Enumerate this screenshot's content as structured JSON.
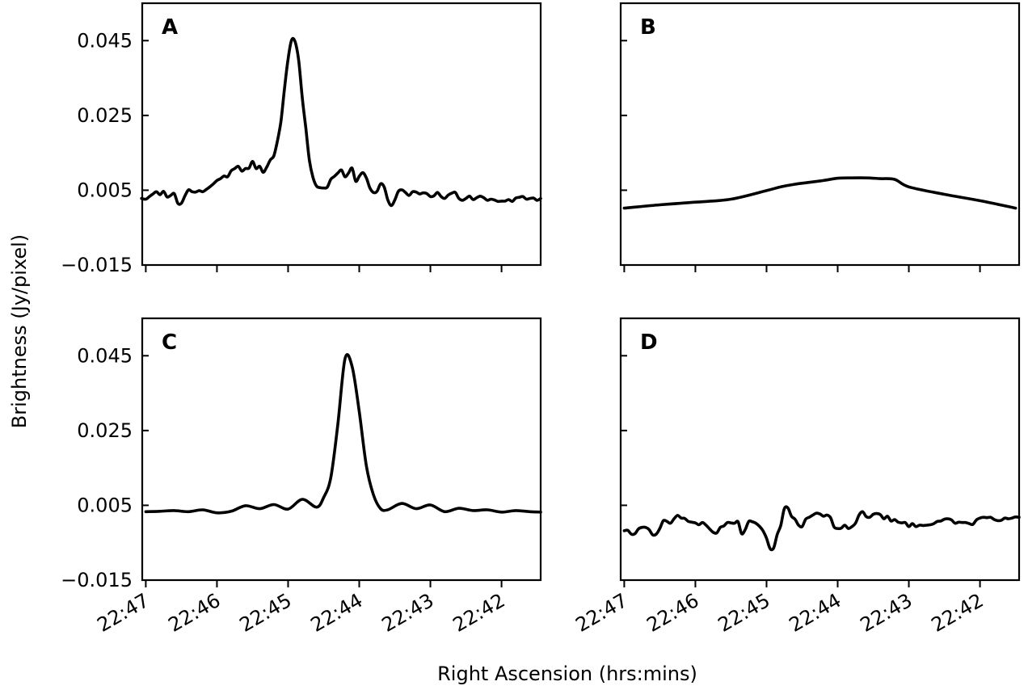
{
  "figure": {
    "xlabel": "Right Ascension (hrs:mins)",
    "ylabel": "Brightness (Jy/pixel)"
  },
  "chart_data": [
    {
      "type": "line",
      "panel": "A",
      "xlabel": "Right Ascension (hrs:mins)",
      "ylabel": "Brightness (Jy/pixel)",
      "x_axis_reversed": true,
      "x_ticks": [
        "22:47",
        "22:46",
        "22:45",
        "22:44",
        "22:43",
        "22:42"
      ],
      "y_ticks": [
        "0.045",
        "0.025",
        "0.005",
        "−0.015"
      ],
      "ylim": [
        -0.015,
        0.055
      ],
      "xlim_minutes_before_2248": [
        0.95,
        6.55
      ],
      "series": [
        {
          "x": [
            0.94,
            1.0,
            1.05,
            1.1,
            1.15,
            1.2,
            1.25,
            1.3,
            1.35,
            1.4,
            1.45,
            1.5,
            1.55,
            1.6,
            1.65,
            1.7,
            1.75,
            1.8,
            1.85,
            1.9,
            1.95,
            2.0,
            2.05,
            2.1,
            2.15,
            2.2,
            2.25,
            2.3,
            2.35,
            2.4,
            2.45,
            2.5,
            2.55,
            2.6,
            2.65,
            2.7,
            2.75,
            2.8,
            2.85,
            2.9,
            2.95,
            3.0,
            3.05,
            3.1,
            3.15,
            3.2,
            3.25,
            3.3,
            3.35,
            3.4,
            3.45,
            3.5,
            3.55,
            3.6,
            3.65,
            3.7,
            3.75,
            3.8,
            3.85,
            3.9,
            3.95,
            4.0,
            4.05,
            4.1,
            4.15,
            4.2,
            4.25,
            4.3,
            4.35,
            4.4,
            4.45,
            4.5,
            4.55,
            4.6,
            4.65,
            4.7,
            4.75,
            4.8,
            4.85,
            4.9,
            4.95,
            5.0,
            5.05,
            5.1,
            5.15,
            5.2,
            5.25,
            5.3,
            5.35,
            5.4,
            5.45,
            5.5,
            5.55,
            5.6,
            5.65,
            5.7,
            5.75,
            5.8,
            5.85,
            5.9,
            5.95,
            6.0,
            6.05,
            6.1,
            6.15,
            6.2,
            6.25,
            6.3,
            6.35,
            6.4,
            6.45,
            6.5,
            6.55
          ],
          "y": [
            0.0028,
            0.0026,
            0.0033,
            0.004,
            0.0046,
            0.0038,
            0.0047,
            0.0032,
            0.0036,
            0.0041,
            0.0015,
            0.0015,
            0.0035,
            0.0051,
            0.0046,
            0.0045,
            0.0049,
            0.0046,
            0.0052,
            0.0059,
            0.0067,
            0.0076,
            0.0081,
            0.0088,
            0.0086,
            0.0102,
            0.0108,
            0.0114,
            0.0101,
            0.0108,
            0.0109,
            0.0127,
            0.0108,
            0.0114,
            0.0098,
            0.0112,
            0.0131,
            0.0142,
            0.0182,
            0.0235,
            0.0323,
            0.0401,
            0.0452,
            0.0446,
            0.0395,
            0.0296,
            0.0215,
            0.0129,
            0.0084,
            0.0061,
            0.0057,
            0.0056,
            0.0058,
            0.0079,
            0.0087,
            0.0096,
            0.0104,
            0.0086,
            0.0096,
            0.0109,
            0.0074,
            0.0087,
            0.0097,
            0.0083,
            0.0056,
            0.0044,
            0.0047,
            0.0067,
            0.0059,
            0.0025,
            0.0009,
            0.0024,
            0.0047,
            0.0051,
            0.0044,
            0.0036,
            0.0046,
            0.0045,
            0.004,
            0.0043,
            0.0041,
            0.0033,
            0.0035,
            0.0044,
            0.0033,
            0.0028,
            0.0037,
            0.0042,
            0.0044,
            0.0028,
            0.0023,
            0.0028,
            0.0034,
            0.0025,
            0.003,
            0.0034,
            0.003,
            0.0023,
            0.0026,
            0.0024,
            0.002,
            0.0021,
            0.0021,
            0.0025,
            0.002,
            0.0029,
            0.0031,
            0.0033,
            0.0026,
            0.0028,
            0.0029,
            0.0023,
            0.0028
          ]
        }
      ]
    },
    {
      "type": "line",
      "panel": "B",
      "x_axis_reversed": true,
      "x_ticks": [
        "22:47",
        "22:46",
        "22:45",
        "22:44",
        "22:43",
        "22:42"
      ],
      "ylim": [
        -0.015,
        0.055
      ],
      "xlim_minutes_before_2248": [
        0.95,
        6.55
      ],
      "series": [
        {
          "x": [
            1.0,
            1.5,
            2.0,
            2.5,
            3.0,
            3.2,
            3.4,
            3.6,
            3.8,
            4.0,
            4.2,
            4.4,
            4.6,
            4.8,
            5.0,
            5.5,
            6.0,
            6.5
          ],
          "y": [
            0.0002,
            0.0011,
            0.0018,
            0.0026,
            0.0049,
            0.0059,
            0.0066,
            0.0071,
            0.0076,
            0.0082,
            0.0083,
            0.0083,
            0.0081,
            0.0079,
            0.0059,
            0.0039,
            0.0022,
            0.0002
          ]
        }
      ]
    },
    {
      "type": "line",
      "panel": "C",
      "x_axis_reversed": true,
      "x_ticks": [
        "22:47",
        "22:46",
        "22:45",
        "22:44",
        "22:43",
        "22:42"
      ],
      "y_ticks": [
        "0.045",
        "0.025",
        "0.005",
        "−0.015"
      ],
      "ylim": [
        -0.015,
        0.055
      ],
      "xlim_minutes_before_2248": [
        0.95,
        6.55
      ],
      "series": [
        {
          "x": [
            1.0,
            1.2,
            1.4,
            1.6,
            1.8,
            2.0,
            2.2,
            2.4,
            2.6,
            2.8,
            3.0,
            3.2,
            3.4,
            3.5,
            3.6,
            3.7,
            3.8,
            3.9,
            4.0,
            4.1,
            4.2,
            4.3,
            4.4,
            4.6,
            4.8,
            5.0,
            5.2,
            5.4,
            5.6,
            5.8,
            6.0,
            6.2,
            6.4,
            6.55
          ],
          "y": [
            0.0033,
            0.0034,
            0.0036,
            0.0033,
            0.0038,
            0.003,
            0.0034,
            0.0049,
            0.0041,
            0.0052,
            0.004,
            0.0066,
            0.0045,
            0.0071,
            0.0124,
            0.0268,
            0.0442,
            0.0421,
            0.0301,
            0.0156,
            0.0078,
            0.0041,
            0.0038,
            0.0055,
            0.0041,
            0.0051,
            0.0033,
            0.0042,
            0.0036,
            0.0038,
            0.0032,
            0.0036,
            0.0033,
            0.0032
          ]
        }
      ]
    },
    {
      "type": "line",
      "panel": "D",
      "x_axis_reversed": true,
      "x_ticks": [
        "22:47",
        "22:46",
        "22:45",
        "22:44",
        "22:43",
        "22:42"
      ],
      "ylim": [
        -0.015,
        0.055
      ],
      "xlim_minutes_before_2248": [
        0.95,
        6.55
      ],
      "series": [
        {
          "x": [
            1.0,
            1.05,
            1.1,
            1.15,
            1.2,
            1.25,
            1.3,
            1.35,
            1.4,
            1.45,
            1.5,
            1.55,
            1.6,
            1.65,
            1.7,
            1.75,
            1.8,
            1.85,
            1.9,
            1.95,
            2.0,
            2.05,
            2.1,
            2.15,
            2.2,
            2.25,
            2.3,
            2.35,
            2.4,
            2.45,
            2.5,
            2.55,
            2.6,
            2.65,
            2.7,
            2.75,
            2.8,
            2.85,
            2.9,
            2.95,
            3.0,
            3.05,
            3.1,
            3.15,
            3.2,
            3.25,
            3.3,
            3.35,
            3.4,
            3.45,
            3.5,
            3.55,
            3.6,
            3.65,
            3.7,
            3.75,
            3.8,
            3.85,
            3.9,
            3.95,
            4.0,
            4.05,
            4.1,
            4.15,
            4.2,
            4.25,
            4.3,
            4.35,
            4.4,
            4.45,
            4.5,
            4.55,
            4.6,
            4.65,
            4.7,
            4.75,
            4.8,
            4.85,
            4.9,
            4.95,
            5.0,
            5.05,
            5.1,
            5.15,
            5.2,
            5.25,
            5.3,
            5.35,
            5.4,
            5.45,
            5.5,
            5.55,
            5.6,
            5.65,
            5.7,
            5.75,
            5.8,
            5.85,
            5.9,
            5.95,
            6.0,
            6.05,
            6.1,
            6.15,
            6.2,
            6.25,
            6.3,
            6.35,
            6.4,
            6.45,
            6.5,
            6.55
          ],
          "y": [
            -0.0018,
            -0.0017,
            -0.0027,
            -0.0026,
            -0.0013,
            -0.0009,
            -0.0009,
            -0.0015,
            -0.0029,
            -0.0027,
            -0.0012,
            0.0009,
            0.0007,
            0.0002,
            0.0014,
            0.0023,
            0.0016,
            0.0015,
            0.0007,
            0.0005,
            0.0003,
            -0.0002,
            0.0004,
            -0.0003,
            -0.0013,
            -0.0022,
            -0.0024,
            -0.0009,
            -0.0005,
            0.0004,
            0.0003,
            0.0002,
            0.0006,
            -0.0026,
            -0.0015,
            0.0007,
            0.0006,
            0.0002,
            -0.0006,
            -0.0018,
            -0.0038,
            -0.0066,
            -0.0064,
            -0.0028,
            -0.0004,
            0.0041,
            0.0043,
            0.0021,
            0.0013,
            -0.0003,
            -0.0007,
            0.0013,
            0.0018,
            0.0024,
            0.0029,
            0.0027,
            0.0021,
            0.0024,
            0.0017,
            -0.0008,
            -0.0012,
            -0.0011,
            -0.0003,
            -0.0012,
            -0.0007,
            0.0002,
            0.0024,
            0.0033,
            0.002,
            0.0018,
            0.0026,
            0.0028,
            0.0025,
            0.0014,
            0.0021,
            0.0008,
            0.0012,
            0.0005,
            0.0003,
            0.0004,
            -0.0007,
            0.0001,
            -0.0007,
            -0.0003,
            -0.0004,
            -0.0003,
            -0.0002,
            0.0001,
            0.0007,
            0.0008,
            0.0013,
            0.0014,
            0.0011,
            0.0002,
            0.0005,
            0.0004,
            0.0004,
            0.0001,
            -0.0001,
            0.0011,
            0.0016,
            0.0018,
            0.0017,
            0.0018,
            0.0012,
            0.0009,
            0.001,
            0.0016,
            0.0014,
            0.0016,
            0.0019,
            0.0018
          ]
        }
      ]
    }
  ]
}
